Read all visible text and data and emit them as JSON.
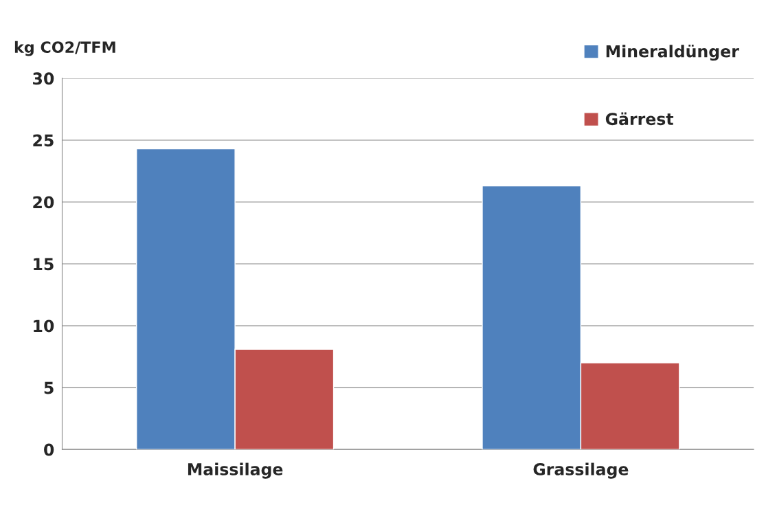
{
  "chart_data": {
    "type": "bar",
    "ylabel": "kg CO2/TFM",
    "categories": [
      "Maissilage",
      "Grassilage"
    ],
    "series": [
      {
        "name": "Mineraldünger",
        "color": "#4f81bd",
        "values": [
          24.3,
          21.3
        ]
      },
      {
        "name": "Gärrest",
        "color": "#c0504d",
        "values": [
          8.1,
          7.0
        ]
      }
    ],
    "ylim": [
      0,
      30
    ],
    "yticks": [
      0,
      5,
      10,
      15,
      20,
      25,
      30
    ],
    "grid": "y",
    "legend": "top right"
  }
}
